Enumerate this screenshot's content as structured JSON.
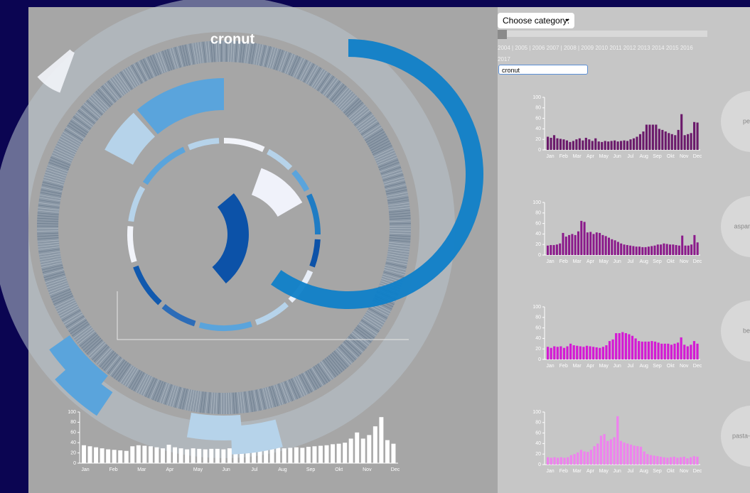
{
  "title": "cronut",
  "category_button": "Choose category:",
  "years": "2004 | 2005 | 2006 2007 | 2008 | 2009 2010 2011 2012 2013 2014 2015 2016 2017",
  "select": "cronut",
  "months": [
    "Jan",
    "Feb",
    "Mar",
    "Apr",
    "May",
    "Jun",
    "Jul",
    "Aug",
    "Sep",
    "Okt",
    "Nov",
    "Dec"
  ],
  "ylim": [
    0,
    100
  ],
  "yticks": [
    0,
    20,
    40,
    60,
    80,
    100
  ],
  "overview": {
    "color": "#ffffff",
    "values": [
      35,
      33,
      31,
      29,
      27,
      26,
      25,
      24,
      33,
      35,
      34,
      33,
      31,
      29,
      36,
      31,
      29,
      27,
      29,
      28,
      27,
      28,
      28,
      27,
      29,
      26,
      28,
      27,
      29,
      28,
      30,
      31,
      30,
      29,
      30,
      31,
      30,
      32,
      33,
      34,
      35,
      37,
      38,
      40,
      48,
      60,
      48,
      55,
      72,
      90,
      45,
      38
    ]
  },
  "chart_data": [
    {
      "type": "bar",
      "label": "pe",
      "color": "#6b1a6b",
      "values": [
        25,
        23,
        28,
        22,
        21,
        20,
        18,
        15,
        17,
        20,
        22,
        18,
        23,
        20,
        17,
        22,
        16,
        15,
        17,
        16,
        17,
        18,
        16,
        17,
        18,
        17,
        20,
        22,
        25,
        30,
        35,
        48,
        48,
        48,
        48,
        40,
        38,
        35,
        32,
        30,
        28,
        38,
        68,
        28,
        30,
        32,
        53,
        52
      ]
    },
    {
      "type": "bar",
      "label": "aspar",
      "color": "#8b1a8b",
      "values": [
        18,
        19,
        19,
        20,
        22,
        42,
        35,
        38,
        40,
        38,
        45,
        65,
        63,
        43,
        44,
        40,
        43,
        42,
        38,
        36,
        33,
        30,
        28,
        25,
        22,
        20,
        19,
        18,
        17,
        16,
        16,
        15,
        15,
        16,
        17,
        18,
        20,
        20,
        22,
        21,
        20,
        20,
        19,
        18,
        37,
        18,
        18,
        20,
        38,
        24
      ]
    },
    {
      "type": "bar",
      "label": "be",
      "color": "#d41ad4",
      "values": [
        24,
        22,
        25,
        24,
        25,
        22,
        25,
        30,
        27,
        26,
        25,
        24,
        26,
        25,
        24,
        23,
        22,
        24,
        27,
        35,
        38,
        50,
        50,
        52,
        50,
        48,
        45,
        40,
        35,
        34,
        34,
        34,
        35,
        34,
        32,
        30,
        30,
        30,
        28,
        30,
        32,
        42,
        28,
        25,
        28,
        35,
        30
      ]
    },
    {
      "type": "bar",
      "label": "pasta-",
      "color": "#ee82ee",
      "values": [
        14,
        13,
        14,
        13,
        14,
        13,
        14,
        18,
        20,
        23,
        28,
        25,
        24,
        28,
        35,
        40,
        55,
        58,
        45,
        48,
        52,
        92,
        45,
        42,
        40,
        38,
        36,
        35,
        34,
        25,
        20,
        18,
        17,
        16,
        15,
        14,
        13,
        14,
        15,
        13,
        14,
        15,
        12,
        14,
        16,
        15
      ]
    }
  ]
}
